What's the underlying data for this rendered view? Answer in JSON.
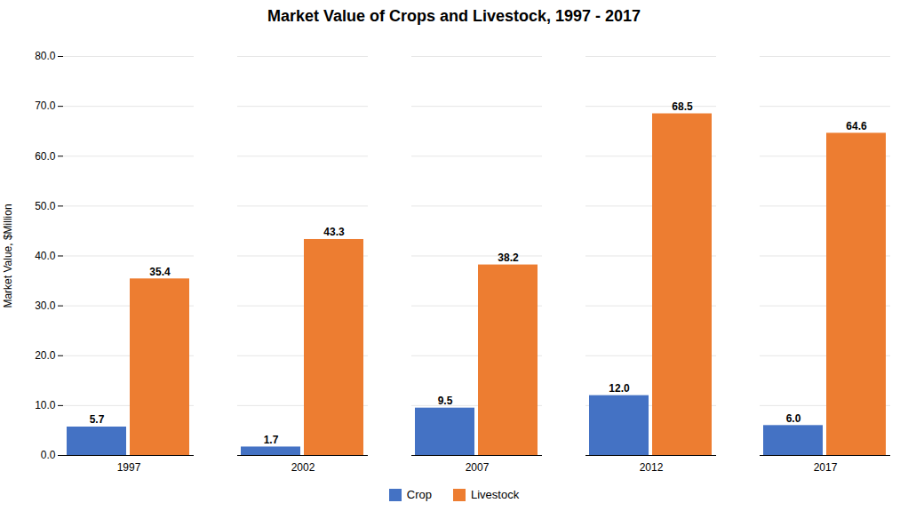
{
  "chart_data": {
    "type": "bar",
    "title": "Market Value of Crops and Livestock, 1997 - 2017",
    "ylabel": "Market Value, $Million",
    "categories": [
      "1997",
      "2002",
      "2007",
      "2012",
      "2017"
    ],
    "series": [
      {
        "name": "Crop",
        "color": "#4472C4",
        "values": [
          5.7,
          1.7,
          9.5,
          12.0,
          6.0
        ],
        "value_labels": [
          "5.7",
          "1.7",
          "9.5",
          "12.0",
          "6.0"
        ]
      },
      {
        "name": "Livestock",
        "color": "#ED7D31",
        "values": [
          35.4,
          43.3,
          38.2,
          68.5,
          64.6
        ],
        "value_labels": [
          "35.4",
          "43.3",
          "38.2",
          "68.5",
          "64.6"
        ]
      }
    ],
    "ylim": [
      0,
      80
    ],
    "yticks": [
      {
        "value": 0,
        "label": "0.0"
      },
      {
        "value": 10,
        "label": "10.0"
      },
      {
        "value": 20,
        "label": "20.0"
      },
      {
        "value": 30,
        "label": "30.0"
      },
      {
        "value": 40,
        "label": "40.0"
      },
      {
        "value": 50,
        "label": "50.0"
      },
      {
        "value": 60,
        "label": "60.0"
      },
      {
        "value": 70,
        "label": "70.0"
      },
      {
        "value": 80,
        "label": "80.0"
      }
    ],
    "grid": true,
    "legend": "bottom",
    "data_labels": true
  }
}
